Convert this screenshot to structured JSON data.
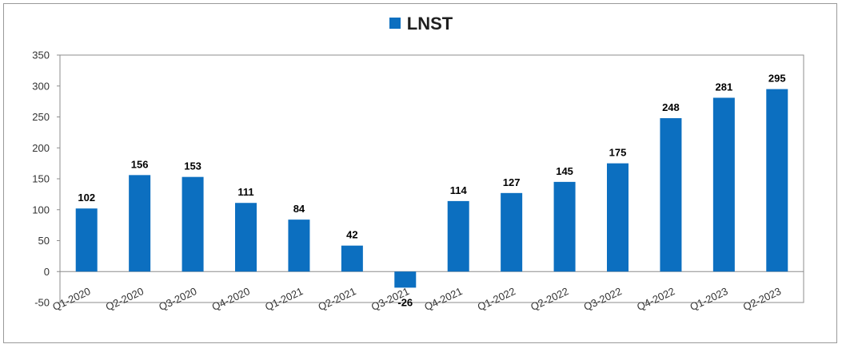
{
  "chart_data": {
    "type": "bar",
    "title": "",
    "xlabel": "",
    "ylabel": "",
    "categories": [
      "Q1-2020",
      "Q2-2020",
      "Q3-2020",
      "Q4-2020",
      "Q1-2021",
      "Q2-2021",
      "Q3-2021",
      "Q4-2021",
      "Q1-2022",
      "Q2-2022",
      "Q3-2022",
      "Q4-2022",
      "Q1-2023",
      "Q2-2023"
    ],
    "series": [
      {
        "name": "LNST",
        "values": [
          102,
          156,
          153,
          111,
          84,
          42,
          -26,
          114,
          127,
          145,
          175,
          248,
          281,
          295
        ],
        "color": "#0c6fc0"
      }
    ],
    "ylim": [
      -50,
      350
    ],
    "yticks": [
      -50,
      0,
      50,
      100,
      150,
      200,
      250,
      300,
      350
    ],
    "grid": false,
    "legend_position": "top",
    "data_labels": true
  }
}
